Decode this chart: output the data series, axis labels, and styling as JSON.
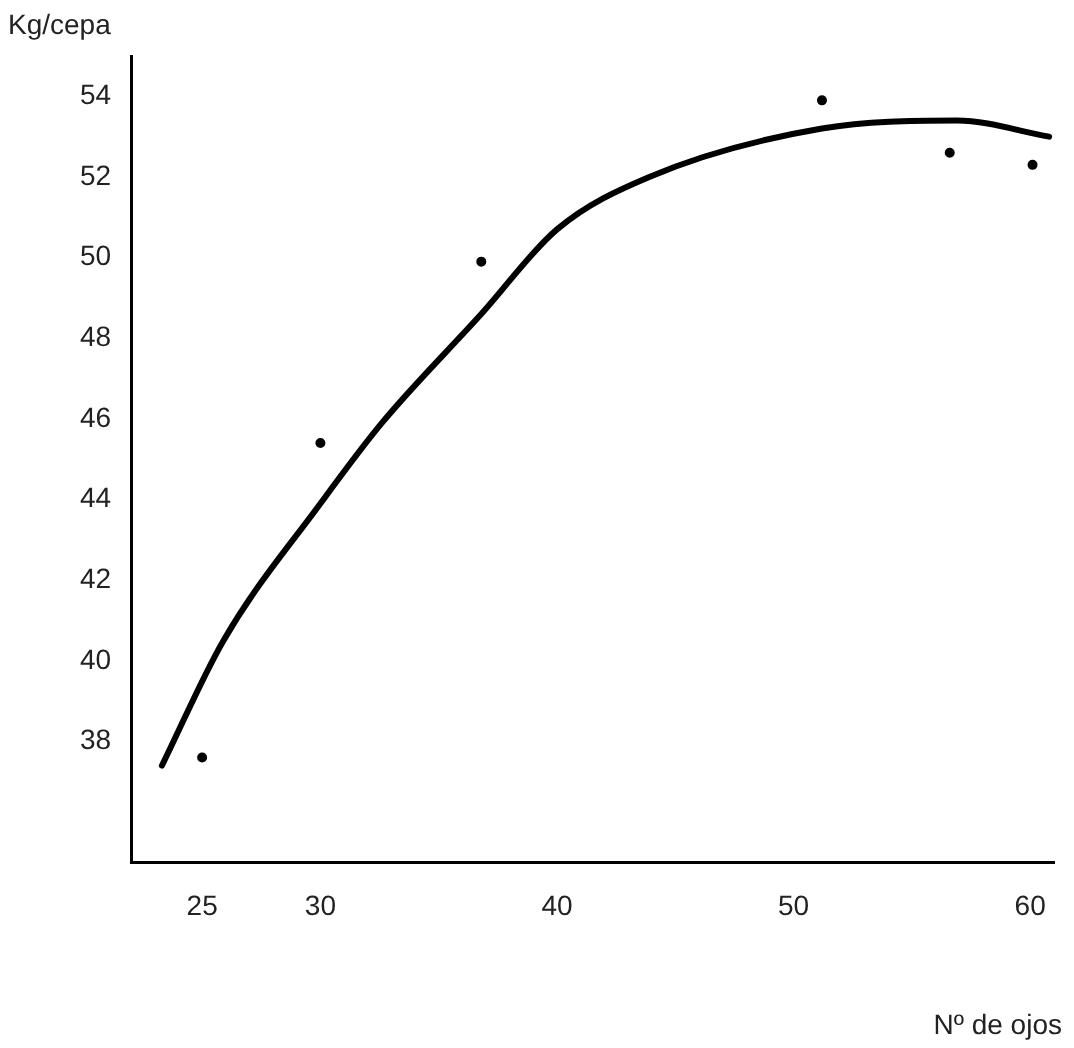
{
  "chart_data": {
    "type": "line",
    "xlabel": "Nº de ojos",
    "ylabel": "Kg/cepa",
    "xlim": [
      22,
      61
    ],
    "xticks": [
      25,
      30,
      40,
      50,
      60
    ],
    "ylim": [
      35,
      55
    ],
    "yticks": [
      38,
      40,
      42,
      44,
      46,
      48,
      50,
      52,
      54
    ],
    "grid": false,
    "legend": false,
    "series": [
      {
        "type": "line",
        "color": "#000000",
        "x": [
          23.3,
          25.9,
          30,
          32.6,
          36.8,
          40,
          43.9,
          51.2,
          56.9,
          60.8
        ],
        "values": [
          37.4,
          40.5,
          43.9,
          45.9,
          48.6,
          50.7,
          52.0,
          53.2,
          53.4,
          53.0
        ]
      },
      {
        "type": "scatter",
        "color": "#000000",
        "x": [
          25,
          30,
          36.8,
          51.2,
          56.6,
          60.1
        ],
        "values": [
          37.6,
          45.4,
          49.9,
          53.9,
          52.6,
          52.3
        ]
      }
    ]
  }
}
